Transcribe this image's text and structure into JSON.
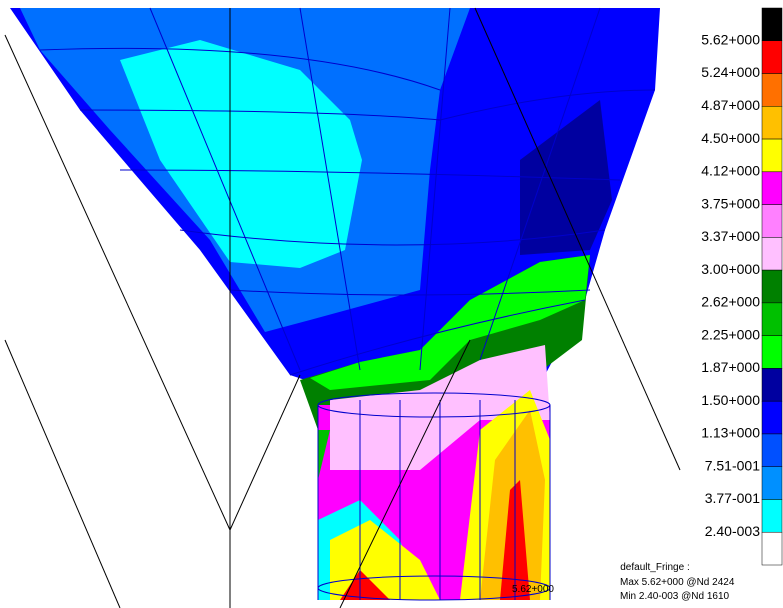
{
  "legend": {
    "colors": [
      "#000000",
      "#ff0000",
      "#ff7000",
      "#ffc000",
      "#ffff00",
      "#ff00ff",
      "#ff80ff",
      "#ffc0ff",
      "#008000",
      "#00c000",
      "#00ff00",
      "#0000a0",
      "#0000ff",
      "#0050ff",
      "#0090ff",
      "#00ffff",
      "#ffffff"
    ],
    "labels": [
      "5.62+000",
      "5.24+000",
      "4.87+000",
      "4.50+000",
      "4.12+000",
      "3.75+000",
      "3.37+000",
      "3.00+000",
      "2.62+000",
      "2.25+000",
      "1.87+000",
      "1.50+000",
      "1.13+000",
      "7.51-001",
      "3.77-001",
      "2.40-003"
    ]
  },
  "footer": {
    "title": "default_Fringe :",
    "max": "Max 5.62+000 @Nd 2424",
    "min": "Min 2.40-003 @Nd 1610"
  },
  "annotation": "5.62+000"
}
